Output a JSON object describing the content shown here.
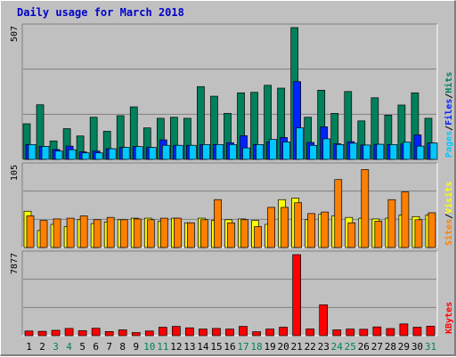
{
  "title": "Daily usage for March 2018",
  "colors": {
    "background": "#c0c0c0",
    "hits": "#00805c",
    "files": "#0024ff",
    "pages": "#00c8ff",
    "visits": "#ffff00",
    "sites": "#ff8000",
    "kbytes": "#ff0000",
    "weekend_label": "#00805c",
    "weekday_label": "#000000"
  },
  "chart_data": [
    {
      "type": "bar",
      "name": "hits-files-pages",
      "max_label": "507",
      "ylim": [
        0,
        507
      ],
      "legend": [
        {
          "label": "Pages",
          "color_key": "pages"
        },
        {
          "label": "Files",
          "color_key": "files"
        },
        {
          "label": "Hits",
          "color_key": "hits"
        }
      ],
      "categories": [
        "1",
        "2",
        "3",
        "4",
        "5",
        "6",
        "7",
        "8",
        "9",
        "10",
        "11",
        "12",
        "13",
        "14",
        "15",
        "16",
        "17",
        "18",
        "19",
        "20",
        "21",
        "22",
        "23",
        "24",
        "25",
        "26",
        "27",
        "28",
        "29",
        "30",
        "31"
      ],
      "series": [
        {
          "name": "Hits",
          "color_key": "hits",
          "values": [
            137,
            210,
            71,
            118,
            90,
            162,
            108,
            168,
            202,
            121,
            158,
            162,
            158,
            280,
            243,
            177,
            256,
            258,
            285,
            274,
            507,
            162,
            266,
            177,
            261,
            148,
            237,
            170,
            209,
            256,
            158
          ]
        },
        {
          "name": "Files",
          "color_key": "files",
          "values": [
            57,
            50,
            38,
            51,
            29,
            32,
            41,
            46,
            49,
            46,
            75,
            54,
            54,
            57,
            57,
            64,
            91,
            57,
            67,
            84,
            299,
            65,
            125,
            60,
            68,
            55,
            58,
            57,
            59,
            94,
            63
          ]
        },
        {
          "name": "Pages",
          "color_key": "pages",
          "values": [
            57,
            50,
            32,
            37,
            25,
            25,
            41,
            46,
            49,
            46,
            54,
            54,
            54,
            57,
            57,
            57,
            44,
            57,
            77,
            67,
            121,
            54,
            79,
            57,
            62,
            55,
            58,
            57,
            66,
            51,
            63
          ]
        }
      ]
    },
    {
      "type": "bar",
      "name": "visits-sites",
      "max_label": "105",
      "ylim": [
        0,
        105
      ],
      "legend": [
        {
          "label": "Sites",
          "color_key": "sites"
        },
        {
          "label": "Visits",
          "color_key": "visits"
        }
      ],
      "categories": [
        "1",
        "2",
        "3",
        "4",
        "5",
        "6",
        "7",
        "8",
        "9",
        "10",
        "11",
        "12",
        "13",
        "14",
        "15",
        "16",
        "17",
        "18",
        "19",
        "20",
        "21",
        "22",
        "23",
        "24",
        "25",
        "26",
        "27",
        "28",
        "29",
        "30",
        "31"
      ],
      "series": [
        {
          "name": "Visits",
          "color_key": "visits",
          "values": [
            47,
            22,
            30,
            27,
            36,
            31,
            33,
            36,
            38,
            38,
            34,
            38,
            32,
            38,
            35,
            36,
            37,
            35,
            30,
            62,
            64,
            36,
            43,
            41,
            39,
            38,
            37,
            38,
            42,
            40,
            42
          ]
        },
        {
          "name": "Sites",
          "color_key": "sites",
          "values": [
            41,
            35,
            37,
            38,
            41,
            36,
            39,
            36,
            37,
            36,
            38,
            38,
            32,
            36,
            62,
            32,
            36,
            27,
            52,
            52,
            58,
            44,
            46,
            88,
            32,
            101,
            34,
            62,
            72,
            36,
            45
          ]
        }
      ]
    },
    {
      "type": "bar",
      "name": "kbytes",
      "max_label": "7877",
      "ylim": [
        0,
        7877
      ],
      "legend": [
        {
          "label": "KBytes",
          "color_key": "kbytes"
        }
      ],
      "categories": [
        "1",
        "2",
        "3",
        "4",
        "5",
        "6",
        "7",
        "8",
        "9",
        "10",
        "11",
        "12",
        "13",
        "14",
        "15",
        "16",
        "17",
        "18",
        "19",
        "20",
        "21",
        "22",
        "23",
        "24",
        "25",
        "26",
        "27",
        "28",
        "29",
        "30",
        "31"
      ],
      "series": [
        {
          "name": "KBytes",
          "color_key": "kbytes",
          "values": [
            450,
            420,
            520,
            700,
            480,
            720,
            400,
            560,
            300,
            450,
            820,
            900,
            760,
            640,
            700,
            640,
            900,
            380,
            640,
            820,
            7877,
            650,
            3000,
            560,
            640,
            620,
            850,
            690,
            1140,
            820,
            920
          ]
        }
      ]
    }
  ],
  "x_labels": [
    {
      "label": "1",
      "weekend": false
    },
    {
      "label": "2",
      "weekend": false
    },
    {
      "label": "3",
      "weekend": true
    },
    {
      "label": "4",
      "weekend": true
    },
    {
      "label": "5",
      "weekend": false
    },
    {
      "label": "6",
      "weekend": false
    },
    {
      "label": "7",
      "weekend": false
    },
    {
      "label": "8",
      "weekend": false
    },
    {
      "label": "9",
      "weekend": false
    },
    {
      "label": "10",
      "weekend": true
    },
    {
      "label": "11",
      "weekend": true
    },
    {
      "label": "12",
      "weekend": false
    },
    {
      "label": "13",
      "weekend": false
    },
    {
      "label": "14",
      "weekend": false
    },
    {
      "label": "15",
      "weekend": false
    },
    {
      "label": "16",
      "weekend": false
    },
    {
      "label": "17",
      "weekend": true
    },
    {
      "label": "18",
      "weekend": true
    },
    {
      "label": "19",
      "weekend": false
    },
    {
      "label": "20",
      "weekend": false
    },
    {
      "label": "21",
      "weekend": false
    },
    {
      "label": "22",
      "weekend": false
    },
    {
      "label": "23",
      "weekend": false
    },
    {
      "label": "24",
      "weekend": true
    },
    {
      "label": "25",
      "weekend": true
    },
    {
      "label": "26",
      "weekend": false
    },
    {
      "label": "27",
      "weekend": false
    },
    {
      "label": "28",
      "weekend": false
    },
    {
      "label": "29",
      "weekend": false
    },
    {
      "label": "30",
      "weekend": false
    },
    {
      "label": "31",
      "weekend": true
    }
  ]
}
